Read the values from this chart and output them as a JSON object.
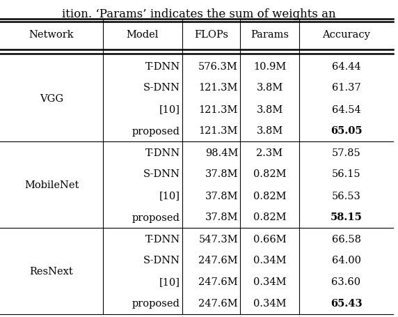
{
  "header": [
    "Network",
    "Model",
    "FLOPs",
    "Params",
    "Accuracy"
  ],
  "rows": [
    [
      "VGG",
      "T-DNN",
      "576.3M",
      "10.9M",
      "64.44",
      false
    ],
    [
      "VGG",
      "S-DNN",
      "121.3M",
      "3.8M",
      "61.37",
      false
    ],
    [
      "VGG",
      "[10]",
      "121.3M",
      "3.8M",
      "64.54",
      false
    ],
    [
      "VGG",
      "proposed",
      "121.3M",
      "3.8M",
      "65.05",
      true
    ],
    [
      "MobileNet",
      "T-DNN",
      "98.4M",
      "2.3M",
      "57.85",
      false
    ],
    [
      "MobileNet",
      "S-DNN",
      "37.8M",
      "0.82M",
      "56.15",
      false
    ],
    [
      "MobileNet",
      "[10]",
      "37.8M",
      "0.82M",
      "56.53",
      false
    ],
    [
      "MobileNet",
      "proposed",
      "37.8M",
      "0.82M",
      "58.15",
      true
    ],
    [
      "ResNext",
      "T-DNN",
      "547.3M",
      "0.66M",
      "66.58",
      false
    ],
    [
      "ResNext",
      "S-DNN",
      "247.6M",
      "0.34M",
      "64.00",
      false
    ],
    [
      "ResNext",
      "[10]",
      "247.6M",
      "0.34M",
      "63.60",
      false
    ],
    [
      "ResNext",
      "proposed",
      "247.6M",
      "0.34M",
      "65.43",
      true
    ]
  ],
  "figsize": [
    5.72,
    4.56
  ],
  "dpi": 100,
  "bg_color": "#ffffff",
  "text_color": "#000000",
  "fontsize": 10.5,
  "caption_text": "ition. ‘Params’ indicates the sum of weights an",
  "caption_fontsize": 12
}
